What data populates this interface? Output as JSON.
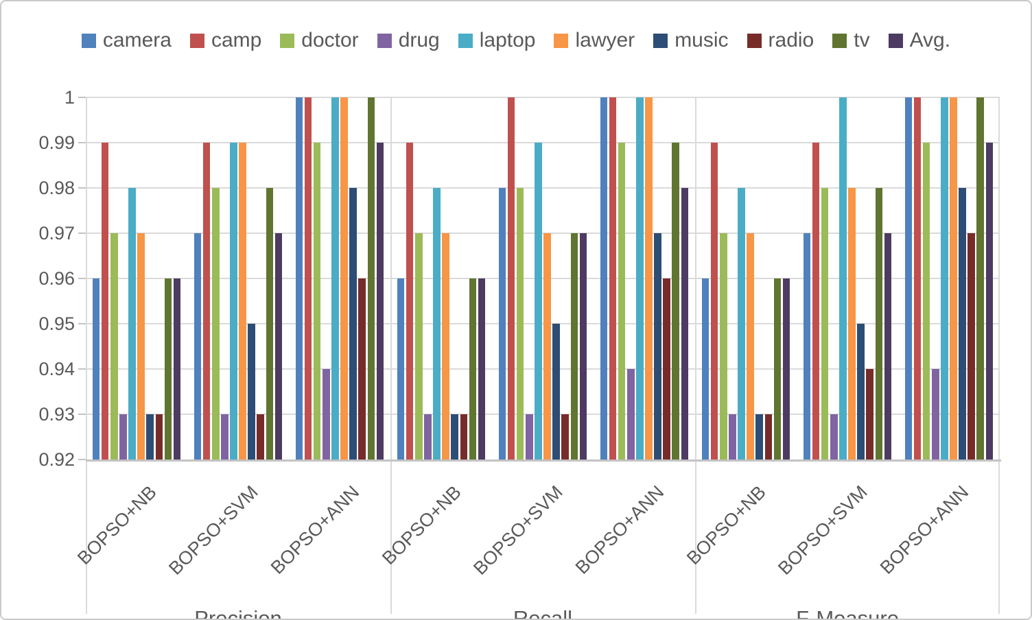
{
  "chart_data": {
    "type": "bar",
    "title": "",
    "legend_position": "top",
    "grid": true,
    "ylim": [
      0.92,
      1.0
    ],
    "ytick_step": 0.01,
    "y_ticks": [
      "1",
      "0.99",
      "0.98",
      "0.97",
      "0.96",
      "0.95",
      "0.94",
      "0.93",
      "0.92"
    ],
    "series": [
      {
        "name": "camera",
        "color": "#4F81BD"
      },
      {
        "name": "camp",
        "color": "#C0504D"
      },
      {
        "name": "doctor",
        "color": "#9BBB59"
      },
      {
        "name": "drug",
        "color": "#8064A2"
      },
      {
        "name": "laptop",
        "color": "#4BACC6"
      },
      {
        "name": "lawyer",
        "color": "#F79646"
      },
      {
        "name": "music",
        "color": "#2C4D75"
      },
      {
        "name": "radio",
        "color": "#772C2A"
      },
      {
        "name": "tv",
        "color": "#5F7530"
      },
      {
        "name": "Avg.",
        "color": "#4D3B62"
      }
    ],
    "categories": [
      "Precision",
      "Recall",
      "F-Measure"
    ],
    "subcategories": [
      "BOPSO+NB",
      "BOPSO+SVM",
      "BOPSO+ANN"
    ],
    "values": {
      "Precision": {
        "BOPSO+NB": [
          0.96,
          0.99,
          0.97,
          0.93,
          0.98,
          0.97,
          0.93,
          0.93,
          0.96,
          0.96
        ],
        "BOPSO+SVM": [
          0.97,
          0.99,
          0.98,
          0.93,
          0.99,
          0.99,
          0.95,
          0.93,
          0.98,
          0.97
        ],
        "BOPSO+ANN": [
          1.0,
          1.0,
          0.99,
          0.94,
          1.0,
          1.0,
          0.98,
          0.96,
          1.0,
          0.99
        ]
      },
      "Recall": {
        "BOPSO+NB": [
          0.96,
          0.99,
          0.97,
          0.93,
          0.98,
          0.97,
          0.93,
          0.93,
          0.96,
          0.96
        ],
        "BOPSO+SVM": [
          0.98,
          1.0,
          0.98,
          0.93,
          0.99,
          0.97,
          0.95,
          0.93,
          0.97,
          0.97
        ],
        "BOPSO+ANN": [
          1.0,
          1.0,
          0.99,
          0.94,
          1.0,
          1.0,
          0.97,
          0.96,
          0.99,
          0.98
        ]
      },
      "F-Measure": {
        "BOPSO+NB": [
          0.96,
          0.99,
          0.97,
          0.93,
          0.98,
          0.97,
          0.93,
          0.93,
          0.96,
          0.96
        ],
        "BOPSO+SVM": [
          0.97,
          0.99,
          0.98,
          0.93,
          1.0,
          0.98,
          0.95,
          0.94,
          0.98,
          0.97
        ],
        "BOPSO+ANN": [
          1.0,
          1.0,
          0.99,
          0.94,
          1.0,
          1.0,
          0.98,
          0.97,
          1.0,
          0.99
        ]
      }
    }
  }
}
